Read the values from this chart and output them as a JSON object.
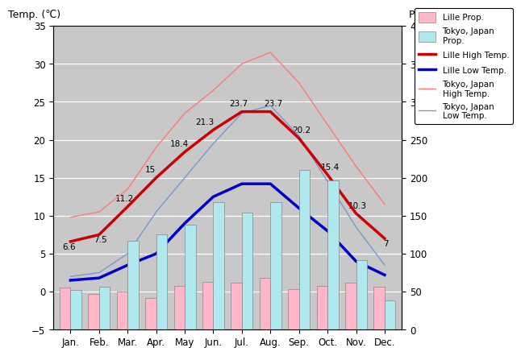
{
  "months": [
    "Jan.",
    "Feb.",
    "Mar.",
    "Apr.",
    "May",
    "Jun.",
    "Jul.",
    "Aug.",
    "Sep.",
    "Oct.",
    "Nov.",
    "Dec."
  ],
  "lille_high_temp": [
    6.6,
    7.5,
    11.2,
    15.0,
    18.4,
    21.3,
    23.7,
    23.7,
    20.2,
    15.4,
    10.3,
    7.0
  ],
  "lille_low_temp": [
    1.5,
    1.8,
    3.5,
    5.0,
    9.0,
    12.5,
    14.2,
    14.2,
    11.0,
    8.0,
    4.0,
    2.2
  ],
  "tokyo_high_temp": [
    9.8,
    10.5,
    13.5,
    19.0,
    23.5,
    26.5,
    30.0,
    31.5,
    27.5,
    22.0,
    16.5,
    11.5
  ],
  "tokyo_low_temp": [
    2.0,
    2.5,
    5.0,
    10.5,
    15.0,
    19.5,
    23.5,
    24.5,
    20.5,
    14.5,
    8.5,
    3.5
  ],
  "lille_precip_mm": [
    55,
    47,
    50,
    42,
    58,
    63,
    62,
    68,
    53,
    58,
    62,
    57
  ],
  "tokyo_precip_mm": [
    52,
    56,
    117,
    125,
    138,
    168,
    154,
    168,
    210,
    197,
    92,
    39
  ],
  "lille_high_labels": [
    "6.6",
    "7.5",
    "11.2",
    "15",
    "18.4",
    "21.3",
    "23.7",
    "23.7",
    "20.2",
    "15.4",
    "10.3",
    "7"
  ],
  "title_left": "Temp. (℃)",
  "title_right": "Prcp. (mm)",
  "ylim_left": [
    -5,
    35
  ],
  "ylim_right": [
    0,
    400
  ],
  "bg_color": "#c8c8c8",
  "lille_high_color": "#cc0000",
  "lille_low_color": "#0000cc",
  "tokyo_high_color": "#ff7777",
  "tokyo_low_color": "#7799cc",
  "lille_precip_color": "#ffb6c8",
  "tokyo_precip_color": "#b0e8f0",
  "legend_labels": [
    "Lille Prop.",
    "Tokyo, Japan\nProp.",
    "Lille High Temp.",
    "Lille Low Temp.",
    "Tokyo, Japan\nHigh Temp.",
    "Tokyo, Japan\nLow Temp."
  ]
}
